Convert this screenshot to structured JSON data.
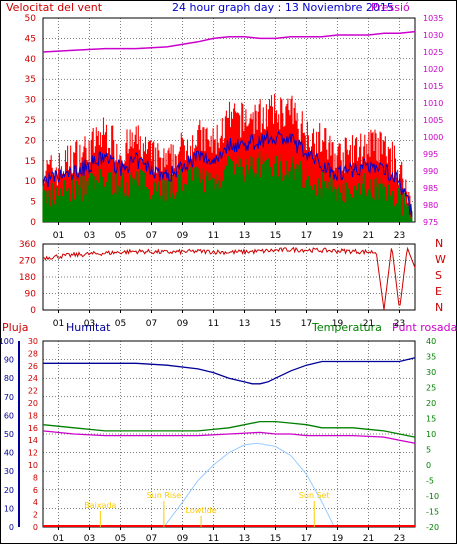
{
  "header": {
    "left_label": "Velocitat del vent",
    "title": "24 hour graph day : 13 Noviembre 2015",
    "right_label": "Pressió"
  },
  "x_ticks": [
    "01",
    "03",
    "05",
    "07",
    "09",
    "11",
    "13",
    "15",
    "17",
    "19",
    "21",
    "23"
  ],
  "colors": {
    "wind_gust": "#ff0000",
    "wind_avg": "#0000cc",
    "wind_low": "#008000",
    "pressure": "#cc00cc",
    "direction": "#cc0000",
    "humidity": "#000099",
    "temperature": "#008000",
    "dewpoint": "#cc00cc",
    "rain": "#ff0000",
    "sun": "#99ccff",
    "events": "#ffcc00"
  },
  "chart_data": [
    {
      "type": "line",
      "panel": "wind-pressure",
      "title": "24 hour graph day : 13 Noviembre 2015",
      "left_axis": {
        "label": "Velocitat del vent",
        "ticks": [
          0,
          5,
          10,
          15,
          20,
          25,
          30,
          35,
          40,
          45,
          50
        ],
        "ylim": [
          0,
          50
        ]
      },
      "right_axis": {
        "label": "Pressió",
        "ticks": [
          975,
          980,
          985,
          990,
          995,
          1000,
          1005,
          1010,
          1015,
          1020,
          1025,
          1030,
          1035
        ],
        "ylim": [
          975,
          1035
        ]
      },
      "xlim": [
        0,
        24
      ],
      "series": [
        {
          "name": "wind_gust",
          "hours": [
            0,
            1,
            2,
            3,
            4,
            5,
            6,
            7,
            8,
            9,
            10,
            11,
            12,
            13,
            14,
            15,
            16,
            17,
            18,
            19,
            20,
            21,
            22,
            23,
            23.8
          ],
          "values": [
            12,
            13,
            16,
            18,
            22,
            17,
            20,
            16,
            14,
            18,
            21,
            19,
            25,
            25,
            26,
            27,
            27,
            22,
            20,
            16,
            17,
            19,
            18,
            13,
            3
          ]
        },
        {
          "name": "wind_avg",
          "hours": [
            0,
            1,
            2,
            3,
            4,
            5,
            6,
            7,
            8,
            9,
            10,
            11,
            12,
            13,
            14,
            15,
            16,
            17,
            18,
            19,
            20,
            21,
            22,
            23,
            23.8
          ],
          "values": [
            10,
            11,
            12,
            14,
            16,
            13,
            15,
            13,
            11,
            14,
            16,
            15,
            19,
            19,
            20,
            21,
            20,
            17,
            14,
            12,
            13,
            14,
            13,
            10,
            2
          ]
        },
        {
          "name": "wind_low",
          "hours": [
            0,
            1,
            2,
            3,
            4,
            5,
            6,
            7,
            8,
            9,
            10,
            11,
            12,
            13,
            14,
            15,
            16,
            17,
            18,
            19,
            20,
            21,
            22,
            23,
            23.8
          ],
          "values": [
            6,
            7,
            8,
            9,
            11,
            9,
            10,
            9,
            8,
            10,
            11,
            10,
            13,
            13,
            14,
            14,
            13,
            11,
            9,
            8,
            8,
            9,
            8,
            6,
            1
          ]
        },
        {
          "name": "pressure",
          "axis": "right",
          "hours": [
            0,
            2,
            4,
            6,
            8,
            10,
            11,
            12,
            13,
            14,
            15,
            16,
            17,
            18,
            19,
            20,
            21,
            22,
            23,
            24
          ],
          "values": [
            1025,
            1025.5,
            1026,
            1026,
            1026.5,
            1028,
            1029,
            1029.5,
            1029.5,
            1029,
            1029,
            1029.5,
            1029.5,
            1029.5,
            1030,
            1030,
            1030,
            1030.5,
            1030.5,
            1031
          ]
        }
      ]
    },
    {
      "type": "line",
      "panel": "wind-direction",
      "left_axis": {
        "ticks": [
          0,
          90,
          180,
          270,
          360
        ],
        "ylim": [
          0,
          360
        ]
      },
      "right_labels": [
        "N",
        "W",
        "S",
        "E",
        "N"
      ],
      "series": [
        {
          "name": "direction",
          "hours": [
            0,
            2,
            4,
            6,
            8,
            10,
            12,
            14,
            16,
            18,
            20,
            21.5,
            22,
            22.5,
            23,
            23.5,
            24
          ],
          "values": [
            285,
            300,
            310,
            320,
            315,
            320,
            315,
            320,
            330,
            325,
            320,
            315,
            0,
            350,
            0,
            340,
            230
          ]
        }
      ]
    },
    {
      "type": "line",
      "panel": "humidity-temperature",
      "labels": {
        "rain": "Pluja",
        "humidity": "Humitat",
        "temperature": "Temperatura",
        "dewpoint": "Punt rosada"
      },
      "axes": {
        "humidity": {
          "ticks": [
            0,
            10,
            20,
            30,
            40,
            50,
            60,
            70,
            80,
            90,
            100
          ],
          "ylim": [
            0,
            100
          ]
        },
        "rain": {
          "ticks": [
            0,
            2,
            4,
            6,
            8,
            10,
            12,
            14,
            16,
            18,
            20,
            22,
            24,
            26,
            28,
            30
          ],
          "ylim": [
            0,
            30
          ]
        },
        "temperature": {
          "ticks": [
            -20,
            -15,
            -10,
            -5,
            0,
            5,
            10,
            15,
            20,
            25,
            30,
            35,
            40
          ],
          "ylim": [
            -20,
            40
          ]
        }
      },
      "series": [
        {
          "name": "humidity",
          "axis": "humidity",
          "hours": [
            0,
            2,
            4,
            6,
            8,
            10,
            11,
            12,
            13,
            13.5,
            14,
            14.5,
            15,
            16,
            17,
            18,
            19,
            20,
            22,
            23,
            24
          ],
          "values": [
            88,
            88,
            88,
            88,
            87,
            85,
            83,
            80,
            78,
            77,
            77,
            78,
            80,
            84,
            87,
            89,
            89,
            89,
            89,
            89,
            91
          ]
        },
        {
          "name": "temperature",
          "axis": "temperature",
          "hours": [
            0,
            2,
            4,
            6,
            8,
            10,
            12,
            14,
            15,
            16,
            17,
            18,
            19,
            20,
            22,
            23,
            24
          ],
          "values": [
            13,
            12,
            11,
            11,
            11,
            11,
            12,
            14,
            14,
            13.5,
            13,
            12,
            12,
            12,
            11,
            10,
            9
          ]
        },
        {
          "name": "dewpoint",
          "axis": "temperature",
          "hours": [
            0,
            2,
            4,
            6,
            8,
            10,
            12,
            14,
            15,
            16,
            17,
            18,
            19,
            20,
            22,
            23,
            24
          ],
          "values": [
            11,
            10,
            9.5,
            9.5,
            9.5,
            9.5,
            10,
            10.5,
            10,
            10,
            9.5,
            9.5,
            9.5,
            9.5,
            9,
            8,
            7
          ]
        },
        {
          "name": "sun_elevation",
          "axis": "temperature",
          "hours": [
            7.8,
            9,
            10,
            11,
            12,
            13,
            13.8,
            15,
            16,
            17,
            18,
            18.8
          ],
          "values": [
            -20,
            -12,
            -5,
            0,
            4,
            6.5,
            7,
            6,
            3,
            -3,
            -12,
            -20
          ]
        }
      ],
      "events": [
        {
          "label": "Baixada",
          "hour": 3.7
        },
        {
          "label": "Sun Rise",
          "hour": 7.8
        },
        {
          "label": "Lowtide",
          "hour": 10.2
        },
        {
          "label": "Sun Set",
          "hour": 17.5
        }
      ]
    }
  ]
}
